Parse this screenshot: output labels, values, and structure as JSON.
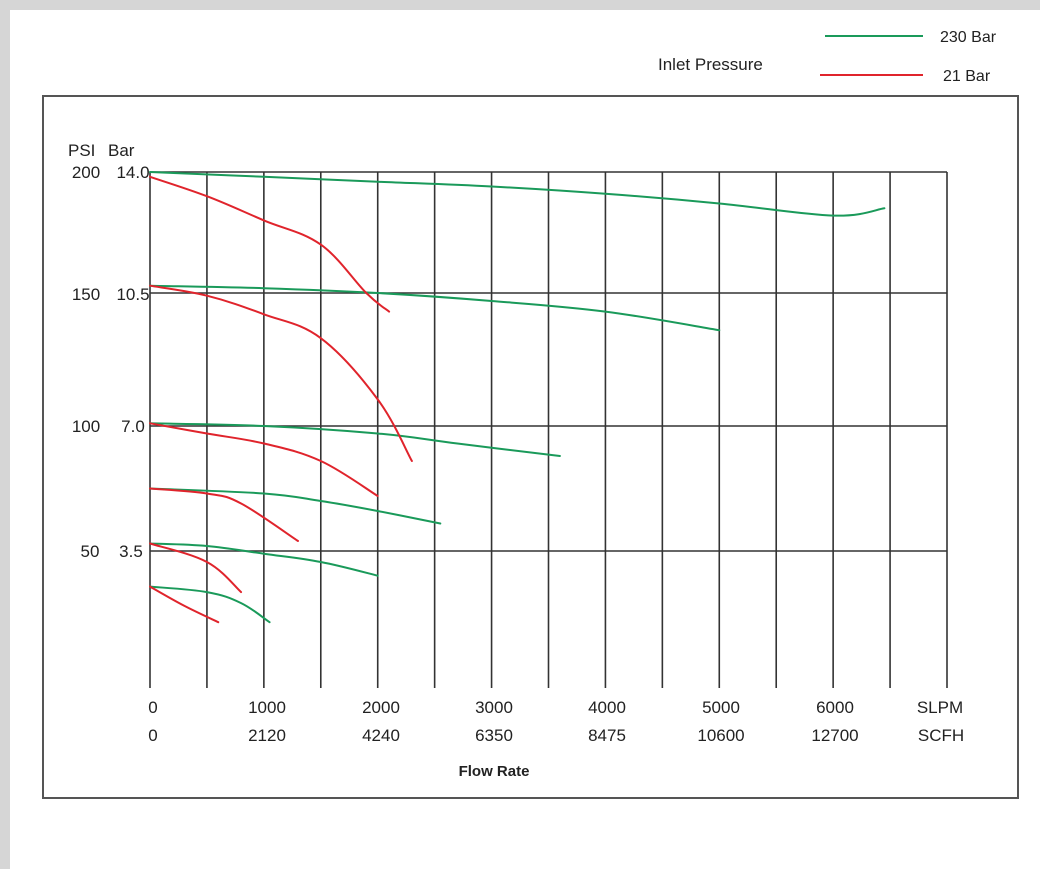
{
  "legend": {
    "title": "Inlet Pressure",
    "position": "top-right",
    "entries": [
      {
        "label": "230 Bar",
        "color": "#1a9a5a"
      },
      {
        "label": "21 Bar",
        "color": "#e0242c"
      }
    ]
  },
  "axis": {
    "y_unit_psi": "PSI",
    "y_unit_bar": "Bar",
    "y_ticks": [
      {
        "psi": "200",
        "bar": "14.0",
        "value": 200
      },
      {
        "psi": "150",
        "bar": "10.5",
        "value": 150
      },
      {
        "psi": "100",
        "bar": "7.0",
        "value": 100
      },
      {
        "psi": "50",
        "bar": "3.5",
        "value": 50
      }
    ],
    "x_ticks": [
      {
        "slpm": "0",
        "scfh": "0",
        "value": 0
      },
      {
        "slpm": "1000",
        "scfh": "2120",
        "value": 1000
      },
      {
        "slpm": "2000",
        "scfh": "4240",
        "value": 2000
      },
      {
        "slpm": "3000",
        "scfh": "6350",
        "value": 3000
      },
      {
        "slpm": "4000",
        "scfh": "8475",
        "value": 4000
      },
      {
        "slpm": "5000",
        "scfh": "10600",
        "value": 5000
      },
      {
        "slpm": "6000",
        "scfh": "12700",
        "value": 6000
      }
    ],
    "x_unit_slpm": "SLPM",
    "x_unit_scfh": "SCFH",
    "xlabel": "Flow Rate"
  },
  "chart_data": {
    "type": "line",
    "title": "",
    "xlabel": "Flow Rate",
    "ylabel": "PSI / Bar",
    "xlim": [
      0,
      7000
    ],
    "ylim": [
      0,
      200
    ],
    "x_vertical_grid": [
      0,
      500,
      1000,
      1500,
      2000,
      2500,
      3000,
      3500,
      4000,
      4500,
      5000,
      5500,
      6000,
      6500,
      7000
    ],
    "y_horizontal_grid": [
      50,
      100,
      150,
      200
    ],
    "grid": true,
    "series": [
      {
        "name": "230 Bar",
        "color": "#1a9a5a",
        "points": [
          [
            0,
            200
          ],
          [
            1000,
            198
          ],
          [
            2000,
            196
          ],
          [
            3000,
            194
          ],
          [
            4000,
            191
          ],
          [
            5000,
            187
          ],
          [
            6000,
            182
          ],
          [
            6450,
            185
          ]
        ]
      },
      {
        "name": "230 Bar",
        "color": "#1a9a5a",
        "points": [
          [
            0,
            153
          ],
          [
            1000,
            152
          ],
          [
            2000,
            150
          ],
          [
            3000,
            147
          ],
          [
            4000,
            143
          ],
          [
            5000,
            136
          ]
        ]
      },
      {
        "name": "230 Bar",
        "color": "#1a9a5a",
        "points": [
          [
            0,
            101
          ],
          [
            1000,
            100
          ],
          [
            2000,
            97
          ],
          [
            2700,
            93
          ],
          [
            3600,
            88
          ]
        ]
      },
      {
        "name": "230 Bar",
        "color": "#1a9a5a",
        "points": [
          [
            0,
            75
          ],
          [
            1000,
            73
          ],
          [
            1500,
            70
          ],
          [
            2000,
            66
          ],
          [
            2550,
            61
          ]
        ]
      },
      {
        "name": "230 Bar",
        "color": "#1a9a5a",
        "points": [
          [
            0,
            53
          ],
          [
            500,
            52
          ],
          [
            1000,
            49
          ],
          [
            1500,
            46
          ],
          [
            2000,
            41
          ]
        ]
      },
      {
        "name": "230 Bar",
        "color": "#1a9a5a",
        "points": [
          [
            0,
            37
          ],
          [
            500,
            35
          ],
          [
            800,
            31
          ],
          [
            1050,
            24
          ]
        ]
      },
      {
        "name": "21 Bar",
        "color": "#e0242c",
        "points": [
          [
            0,
            198
          ],
          [
            500,
            190
          ],
          [
            1000,
            180
          ],
          [
            1500,
            170
          ],
          [
            1900,
            150
          ],
          [
            2100,
            143
          ]
        ]
      },
      {
        "name": "21 Bar",
        "color": "#e0242c",
        "points": [
          [
            0,
            153
          ],
          [
            500,
            149
          ],
          [
            1000,
            142
          ],
          [
            1500,
            133
          ],
          [
            2000,
            110
          ],
          [
            2300,
            86
          ]
        ]
      },
      {
        "name": "21 Bar",
        "color": "#e0242c",
        "points": [
          [
            0,
            101
          ],
          [
            500,
            97
          ],
          [
            1000,
            93
          ],
          [
            1500,
            86
          ],
          [
            2000,
            72
          ]
        ]
      },
      {
        "name": "21 Bar",
        "color": "#e0242c",
        "points": [
          [
            0,
            75
          ],
          [
            500,
            73
          ],
          [
            800,
            69
          ],
          [
            1300,
            54
          ]
        ]
      },
      {
        "name": "21 Bar",
        "color": "#e0242c",
        "points": [
          [
            0,
            53
          ],
          [
            500,
            46
          ],
          [
            800,
            35
          ]
        ]
      },
      {
        "name": "21 Bar",
        "color": "#e0242c",
        "points": [
          [
            0,
            37
          ],
          [
            300,
            30
          ],
          [
            600,
            24
          ]
        ]
      }
    ]
  }
}
